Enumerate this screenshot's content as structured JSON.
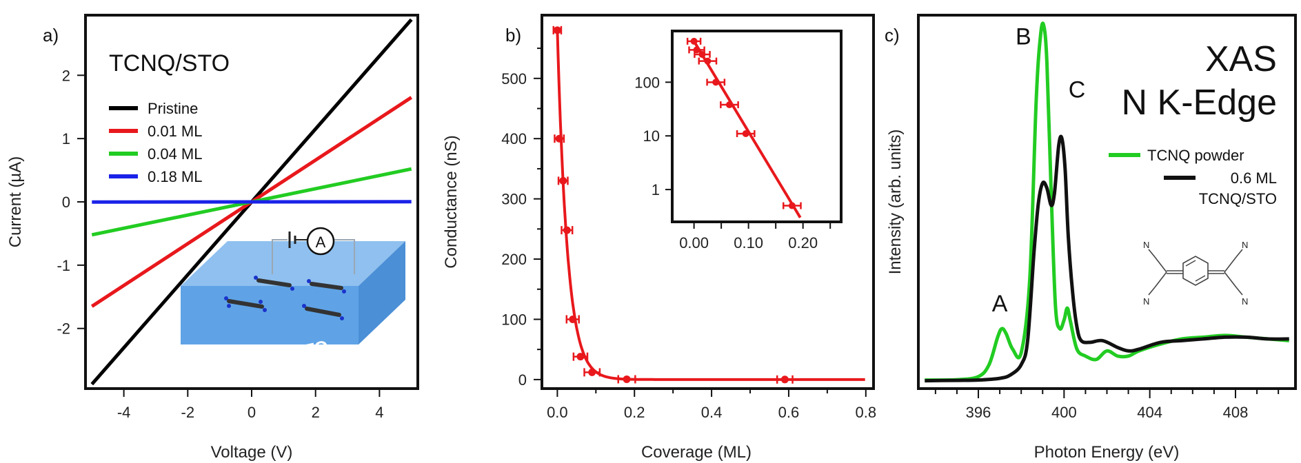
{
  "chart_data": [
    {
      "panel": "a)",
      "type": "line",
      "title": "TCNQ/STO",
      "xlabel": "Voltage (V)",
      "ylabel": "Current (µA)",
      "xlim": [
        -5.2,
        5.2
      ],
      "ylim": [
        -2.95,
        2.95
      ],
      "xticks": [
        -4,
        -2,
        0,
        2,
        4
      ],
      "yticks": [
        -2,
        -1,
        0,
        1,
        2
      ],
      "series": [
        {
          "name": "Pristine",
          "color": "#000000",
          "x": [
            -5,
            5
          ],
          "values": [
            -2.88,
            2.88
          ]
        },
        {
          "name": "0.01 ML",
          "color": "#e8181c",
          "x": [
            -5,
            5
          ],
          "values": [
            -1.65,
            1.65
          ]
        },
        {
          "name": "0.04 ML",
          "color": "#22cc22",
          "x": [
            -5,
            5
          ],
          "values": [
            -0.52,
            0.52
          ]
        },
        {
          "name": "0.18 ML",
          "color": "#1a22e8",
          "x": [
            -5,
            5
          ],
          "values": [
            -0.002,
            0.002
          ]
        }
      ],
      "inset_labels": {
        "substrate": "STO",
        "meter": "A"
      }
    },
    {
      "panel": "b)",
      "type": "scatter",
      "xlabel": "Coverage (ML)",
      "ylabel": "Conductance (nS)",
      "xlim": [
        -0.04,
        0.82
      ],
      "ylim": [
        -15,
        605
      ],
      "xticks": [
        0.0,
        0.2,
        0.4,
        0.6,
        0.8
      ],
      "xtick_labels": [
        "0.0",
        "0.2",
        "0.4",
        "0.6",
        "0.8"
      ],
      "yticks": [
        0,
        100,
        200,
        300,
        400,
        500
      ],
      "color": "#e8181c",
      "points": [
        {
          "x": 0.0,
          "y": 580,
          "xerr": 0.01
        },
        {
          "x": 0.005,
          "y": 400,
          "xerr": 0.012
        },
        {
          "x": 0.015,
          "y": 330,
          "xerr": 0.012
        },
        {
          "x": 0.025,
          "y": 248,
          "xerr": 0.014
        },
        {
          "x": 0.04,
          "y": 100,
          "xerr": 0.016
        },
        {
          "x": 0.06,
          "y": 38,
          "xerr": 0.018
        },
        {
          "x": 0.09,
          "y": 12,
          "xerr": 0.02
        },
        {
          "x": 0.18,
          "y": 0.5,
          "xerr": 0.022
        },
        {
          "x": 0.59,
          "y": 0.1,
          "xerr": 0.02
        }
      ],
      "fit": {
        "model": "exponential",
        "amplitude": 580,
        "decay_length_ML": 0.0262
      },
      "inset": {
        "type": "scatter",
        "yscale": "log",
        "xlim": [
          -0.04,
          0.27
        ],
        "ylim": [
          0.25,
          900
        ],
        "xticks": [
          0.0,
          0.1,
          0.2
        ],
        "xtick_labels": [
          "0.00",
          "0.10",
          "0.20"
        ],
        "yticks": [
          1,
          10,
          100
        ],
        "ytick_labels": [
          "1",
          "10",
          "100"
        ],
        "points": [
          {
            "x": 0.0,
            "y": 580,
            "xerr": 0.012
          },
          {
            "x": 0.005,
            "y": 400,
            "xerr": 0.014
          },
          {
            "x": 0.015,
            "y": 330,
            "xerr": 0.014
          },
          {
            "x": 0.025,
            "y": 248,
            "xerr": 0.016
          },
          {
            "x": 0.04,
            "y": 100,
            "xerr": 0.016
          },
          {
            "x": 0.065,
            "y": 38,
            "xerr": 0.016
          },
          {
            "x": 0.095,
            "y": 11,
            "xerr": 0.016
          },
          {
            "x": 0.18,
            "y": 0.5,
            "xerr": 0.016
          }
        ],
        "fit_line": {
          "x": [
            0.0,
            0.195
          ],
          "y": [
            580,
            0.3
          ]
        }
      }
    },
    {
      "panel": "c)",
      "type": "line",
      "title_lines": [
        "XAS",
        "N K-Edge"
      ],
      "xlabel": "Photon Energy (eV)",
      "ylabel": "Intensity (arb. units)",
      "xlim": [
        393.2,
        410.8
      ],
      "ylim": [
        -0.02,
        1.07
      ],
      "xticks": [
        396,
        400,
        404,
        408
      ],
      "xtick_labels": [
        "396",
        "400",
        "404",
        "408"
      ],
      "minor_xticks": [
        394,
        395,
        397,
        398,
        399,
        401,
        402,
        403,
        405,
        406,
        407,
        409,
        410
      ],
      "peak_labels": [
        {
          "text": "A",
          "x": 397.0,
          "y": 0.205
        },
        {
          "text": "B",
          "x": 398.1,
          "y": 0.985
        },
        {
          "text": "C",
          "x": 400.6,
          "y": 0.83
        }
      ],
      "series": [
        {
          "name": "TCNQ powder",
          "color": "#22cc22",
          "x": [
            393.5,
            395,
            396,
            396.5,
            396.9,
            397.1,
            397.3,
            397.6,
            398.0,
            398.4,
            398.7,
            398.9,
            399.05,
            399.2,
            399.4,
            399.6,
            399.8,
            400.0,
            400.15,
            400.3,
            400.6,
            401.0,
            401.5,
            402.0,
            402.5,
            403.0,
            403.5,
            404.5,
            405.5,
            406.5,
            407.5,
            408.5,
            409.5,
            410.5
          ],
          "values": [
            0.005,
            0.006,
            0.015,
            0.05,
            0.13,
            0.155,
            0.14,
            0.095,
            0.085,
            0.3,
            0.82,
            1.01,
            1.04,
            0.93,
            0.55,
            0.22,
            0.155,
            0.18,
            0.215,
            0.175,
            0.095,
            0.075,
            0.065,
            0.09,
            0.075,
            0.075,
            0.09,
            0.11,
            0.125,
            0.13,
            0.135,
            0.13,
            0.125,
            0.12
          ]
        },
        {
          "name": "0.6 ML TCNQ/STO",
          "color": "#111111",
          "x": [
            393.5,
            395,
            396,
            397,
            397.5,
            398.0,
            398.3,
            398.6,
            398.8,
            399.0,
            399.2,
            399.4,
            399.55,
            399.75,
            399.9,
            400.05,
            400.2,
            400.4,
            400.6,
            400.8,
            401.2,
            401.8,
            402.5,
            403.0,
            403.5,
            404.5,
            405.5,
            406.5,
            407.5,
            408.5,
            409.5,
            410.5
          ],
          "values": [
            0.003,
            0.004,
            0.005,
            0.01,
            0.02,
            0.05,
            0.12,
            0.38,
            0.52,
            0.58,
            0.565,
            0.515,
            0.55,
            0.69,
            0.71,
            0.62,
            0.42,
            0.26,
            0.16,
            0.12,
            0.115,
            0.12,
            0.1,
            0.09,
            0.095,
            0.115,
            0.12,
            0.125,
            0.13,
            0.13,
            0.125,
            0.125
          ]
        }
      ],
      "molecule_labels": [
        "N",
        "N",
        "N",
        "N"
      ]
    }
  ]
}
